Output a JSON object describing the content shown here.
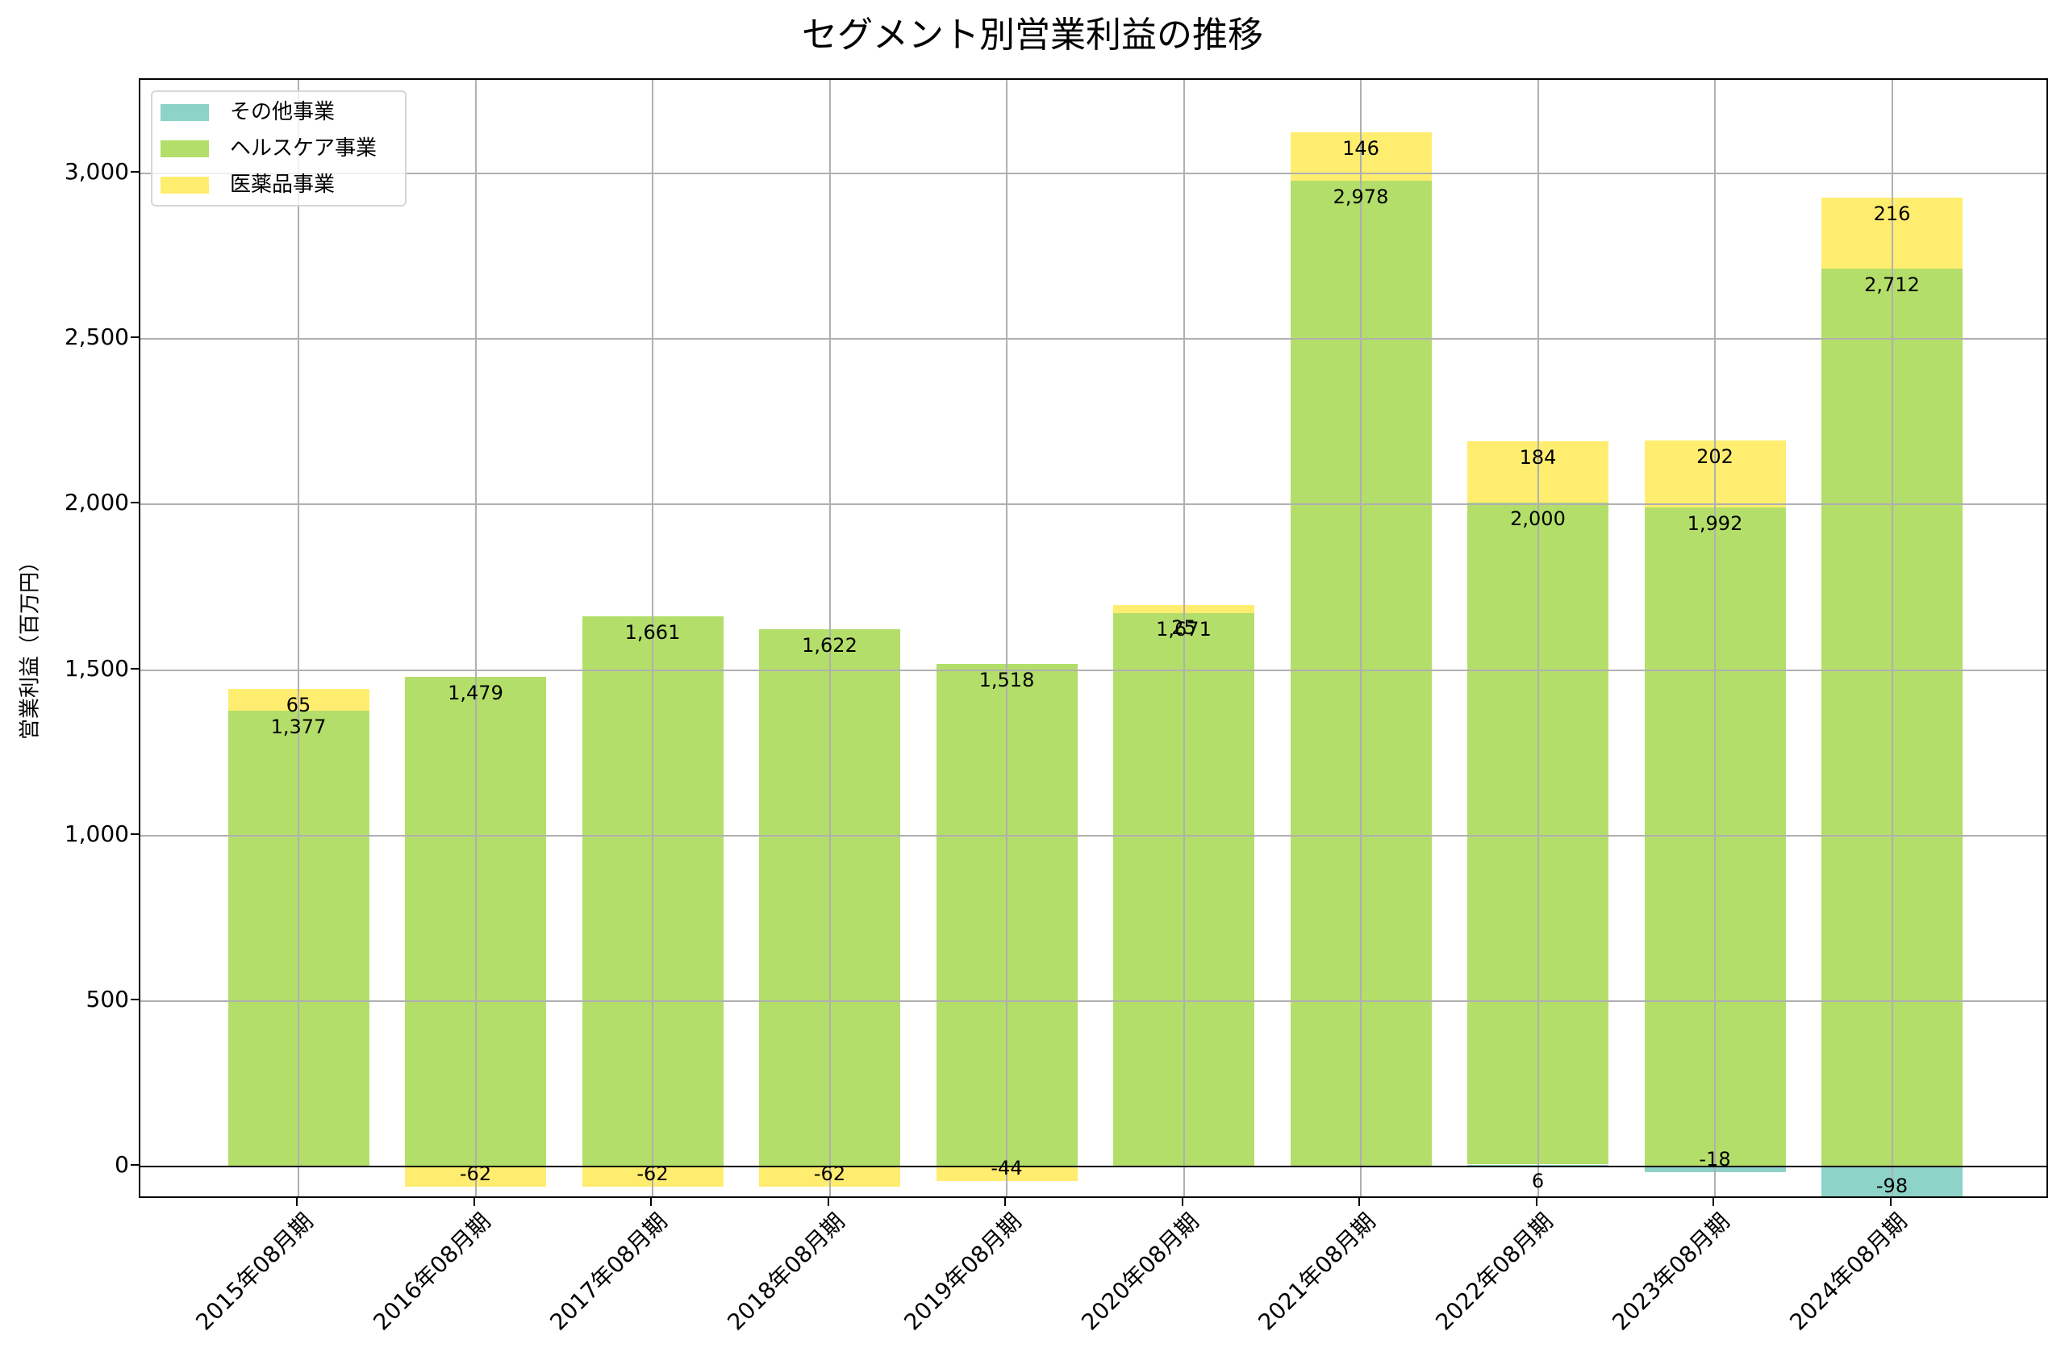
{
  "chart_data": {
    "type": "bar",
    "stacked": true,
    "title": "セグメント別営業利益の推移",
    "xlabel": "",
    "ylabel": "営業利益（百万円）",
    "ylim": [
      -100,
      3283
    ],
    "yticks": [
      0,
      500,
      1000,
      1500,
      2000,
      2500,
      3000
    ],
    "ytick_labels": [
      "0",
      "500",
      "1,000",
      "1,500",
      "2,000",
      "2,500",
      "3,000"
    ],
    "grid": true,
    "legend_position": "upper left",
    "categories": [
      "2015年08月期",
      "2016年08月期",
      "2017年08月期",
      "2018年08月期",
      "2019年08月期",
      "2020年08月期",
      "2021年08月期",
      "2022年08月期",
      "2023年08月期",
      "2024年08月期"
    ],
    "series": [
      {
        "name": "その他事業",
        "color": "#8DD3C7",
        "values": [
          0,
          0,
          0,
          0,
          0,
          0,
          0,
          6,
          -18,
          -98
        ],
        "labels": [
          "",
          "",
          "",
          "",
          "",
          "",
          "",
          "6",
          "-18",
          "-98"
        ]
      },
      {
        "name": "ヘルスケア事業",
        "color": "#B3DE69",
        "values": [
          1377,
          1479,
          1661,
          1622,
          1518,
          1671,
          2978,
          2000,
          1992,
          2712
        ],
        "labels": [
          "1,377",
          "1,479",
          "1,661",
          "1,622",
          "1,518",
          "1,671",
          "2,978",
          "2,000",
          "1,992",
          "2,712"
        ]
      },
      {
        "name": "医薬品事業",
        "color": "#FFED6F",
        "values": [
          65,
          -62,
          -62,
          -62,
          -44,
          25,
          146,
          184,
          202,
          216
        ],
        "labels": [
          "65",
          "-62",
          "-62",
          "-62",
          "-44",
          "25",
          "146",
          "184",
          "202",
          "216"
        ]
      }
    ]
  },
  "legend": {
    "items": [
      {
        "label": "その他事業",
        "color": "#8DD3C7"
      },
      {
        "label": "ヘルスケア事業",
        "color": "#B3DE69"
      },
      {
        "label": "医薬品事業",
        "color": "#FFED6F"
      }
    ]
  }
}
